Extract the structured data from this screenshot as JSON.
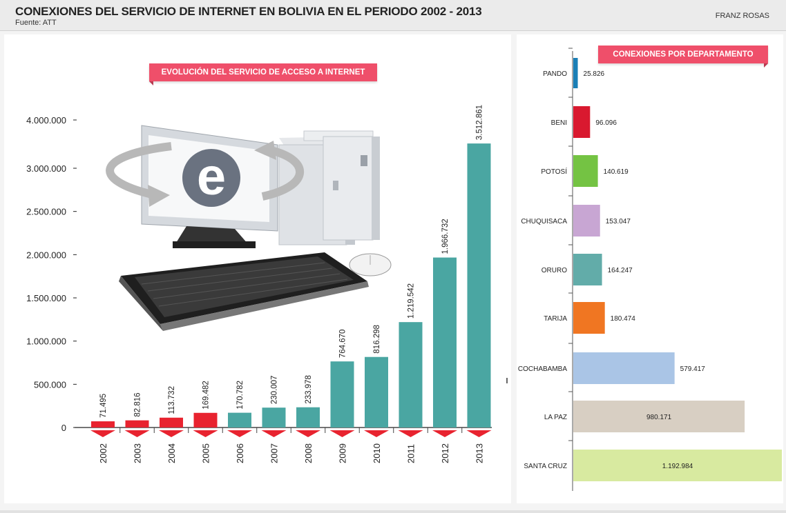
{
  "header": {
    "title": "CONEXIONES DEL SERVICIO DE INTERNET EN BOLIVIA EN EL PERIODO 2002 - 2013",
    "source": "Fuente: ATT",
    "author": "FRANZ ROSAS"
  },
  "ribbons": {
    "left": "EVOLUCIÓN DEL SERVICIO DE ACCESO A INTERNET",
    "right": "CONEXIONES POR DEPARTAMENTO"
  },
  "illustration": {
    "name": "computer-internet-illustration",
    "letter": "e"
  },
  "chart_data": [
    {
      "type": "bar",
      "categories": [
        "2002",
        "2003",
        "2004",
        "2005",
        "2006",
        "2007",
        "2008",
        "2009",
        "2010",
        "2011",
        "2012",
        "2013"
      ],
      "values": [
        71495,
        82816,
        113732,
        169482,
        170782,
        230007,
        233978,
        764670,
        816298,
        1219542,
        1966732,
        3512861
      ],
      "value_labels": [
        "71.495",
        "82.816",
        "113.732",
        "169.482",
        "170.782",
        "230.007",
        "233.978",
        "764.670",
        "816.298",
        "1.219.542",
        "1.966.732",
        "3.512.861"
      ],
      "bar_colors": [
        "#e8232f",
        "#e8232f",
        "#e8232f",
        "#e8232f",
        "#4aa6a2",
        "#4aa6a2",
        "#4aa6a2",
        "#4aa6a2",
        "#4aa6a2",
        "#4aa6a2",
        "#4aa6a2",
        "#4aa6a2"
      ],
      "marker_color": "#e8232f",
      "y_ticks": [
        0,
        500000,
        1000000,
        1500000,
        2000000,
        2500000,
        3000000,
        4000000
      ],
      "y_tick_labels": [
        "0",
        "500.000",
        "1.000.000",
        "1.500.000",
        "2.000.000",
        "2.500.000",
        "3.000.000",
        "4.000.000"
      ],
      "ylim": [
        0,
        4000000
      ],
      "grid": false
    },
    {
      "type": "bar",
      "orientation": "horizontal",
      "categories": [
        "PANDO",
        "BENI",
        "POTOSÍ",
        "CHUQUISACA",
        "ORURO",
        "TARIJA",
        "COCHABAMBA",
        "LA PAZ",
        "SANTA CRUZ"
      ],
      "values": [
        25826,
        96096,
        140619,
        153047,
        164247,
        180474,
        579417,
        980171,
        1192984
      ],
      "value_labels": [
        "25.826",
        "96.096",
        "140.619",
        "153.047",
        "164.247",
        "180.474",
        "579.417",
        "980.171",
        "1.192.984"
      ],
      "bar_colors": [
        "#1a7fb6",
        "#d9192f",
        "#74c343",
        "#c8a6d3",
        "#62aca9",
        "#f07622",
        "#aac5e6",
        "#d8cfc3",
        "#d8eaa0"
      ],
      "grid": false
    }
  ]
}
